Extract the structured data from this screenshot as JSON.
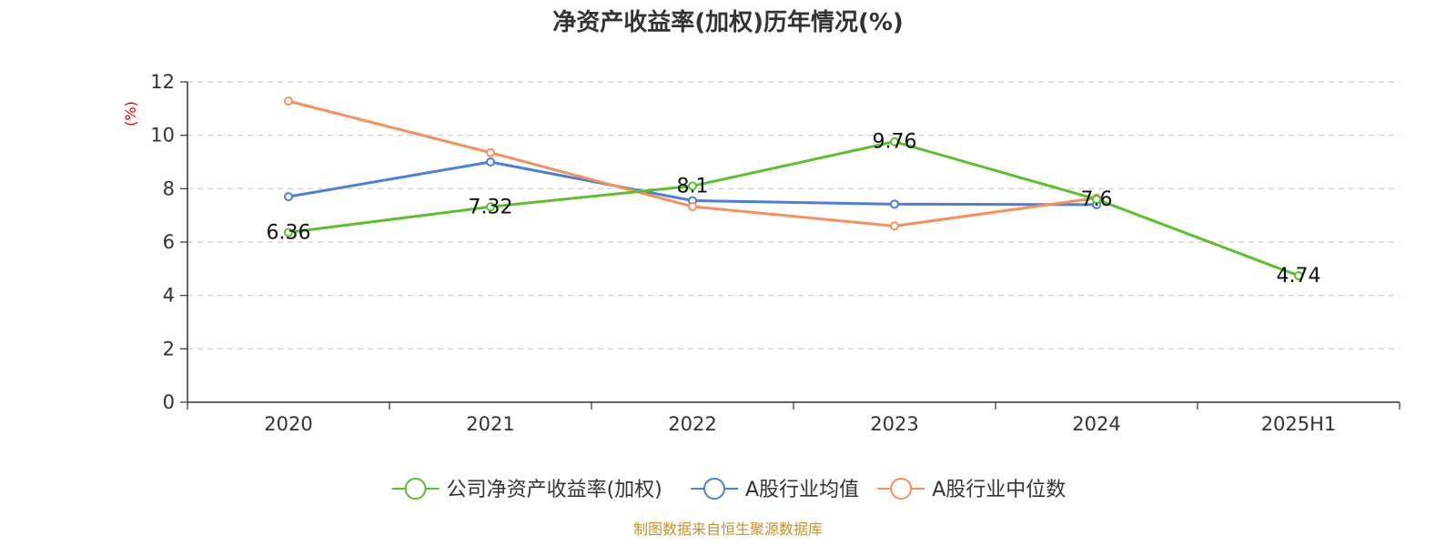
{
  "chart_data": {
    "type": "line",
    "title": "净资产收益率(加权)历年情况(%)",
    "ylabel": "(%)",
    "xlabel": "",
    "categories": [
      "2020",
      "2021",
      "2022",
      "2023",
      "2024",
      "2025H1"
    ],
    "ylim": [
      0,
      12
    ],
    "yticks": [
      0,
      2,
      4,
      6,
      8,
      10,
      12
    ],
    "grid": "horizontal dashed",
    "legend_position": "bottom",
    "series": [
      {
        "name": "公司净资产收益率(加权)",
        "color": "#5bc12b",
        "values": [
          6.36,
          7.32,
          8.1,
          9.76,
          7.6,
          4.74
        ],
        "data_labels": [
          "6.36",
          "7.32",
          "8.1",
          "9.76",
          "7.6",
          "4.74"
        ]
      },
      {
        "name": "A股行业均值",
        "color": "#4a7fdc",
        "values": [
          7.7,
          9.0,
          7.55,
          7.42,
          7.4,
          null
        ]
      },
      {
        "name": "A股行业中位数",
        "color": "#f7905a",
        "values": [
          11.28,
          9.35,
          7.33,
          6.6,
          7.65,
          null
        ]
      }
    ]
  },
  "source": "制图数据来自恒生聚源数据库"
}
